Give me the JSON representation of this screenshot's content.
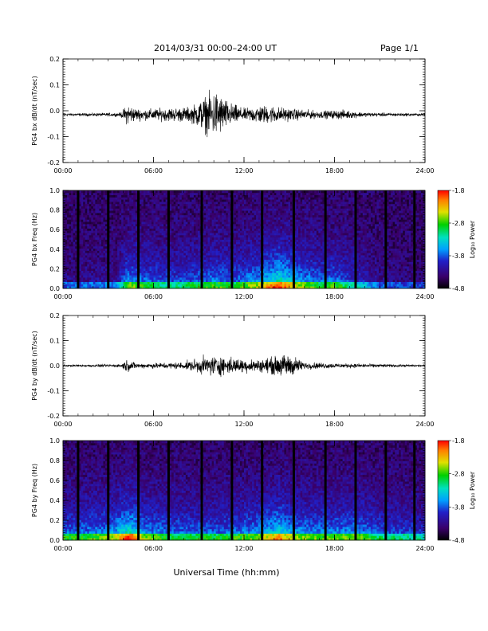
{
  "header": {
    "title": "2014/03/31  00:00–24:00 UT",
    "page": "Page 1/1"
  },
  "colorbar_label": "Log₁₀ Power",
  "chart_data": [
    {
      "type": "line",
      "ylabel": "PG4 bx dB/dt (nT/sec)",
      "ylim": [
        -0.2,
        0.2
      ],
      "y_ticks": [
        "0.2",
        "0.1",
        "0.0",
        "-0.1",
        "-0.2"
      ],
      "x_ticks": [
        "00:00",
        "06:00",
        "12:00",
        "18:00",
        "24:00"
      ],
      "xlim": [
        0,
        24
      ],
      "envelope": [
        {
          "x": 0,
          "amp": 0.004
        },
        {
          "x": 3.8,
          "amp": 0.006
        },
        {
          "x": 4.3,
          "amp": 0.035
        },
        {
          "x": 4.8,
          "amp": 0.02
        },
        {
          "x": 5.5,
          "amp": 0.018
        },
        {
          "x": 8.5,
          "amp": 0.025
        },
        {
          "x": 9.3,
          "amp": 0.055
        },
        {
          "x": 10.1,
          "amp": 0.08
        },
        {
          "x": 11,
          "amp": 0.04
        },
        {
          "x": 12,
          "amp": 0.02
        },
        {
          "x": 13,
          "amp": 0.03
        },
        {
          "x": 14,
          "amp": 0.028
        },
        {
          "x": 15,
          "amp": 0.02
        },
        {
          "x": 17,
          "amp": 0.012
        },
        {
          "x": 18.5,
          "amp": 0.015
        },
        {
          "x": 20,
          "amp": 0.007
        },
        {
          "x": 24,
          "amp": 0.004
        }
      ],
      "baseline": -0.015
    },
    {
      "type": "heatmap",
      "ylabel": "PG4 bx Freq (Hz)",
      "ylim": [
        0,
        1.0
      ],
      "y_ticks": [
        "1.0",
        "0.8",
        "0.6",
        "0.4",
        "0.2",
        "0.0"
      ],
      "x_ticks": [
        "00:00",
        "06:00",
        "12:00",
        "18:00",
        "24:00"
      ],
      "xlim": [
        0,
        24
      ],
      "colorbar": {
        "range": [
          -4.8,
          -1.8
        ],
        "ticks": [
          "-1.8",
          "-2.8",
          "-3.8",
          "-4.8"
        ]
      },
      "gaps": [
        1.0,
        3.0,
        5.0,
        7.0,
        9.2,
        11.2,
        13.2,
        15.3,
        17.4,
        19.4,
        21.4,
        23.3
      ],
      "activity": [
        {
          "x": 0,
          "a": 0.1
        },
        {
          "x": 3.5,
          "a": 0.15
        },
        {
          "x": 4.3,
          "a": 0.55
        },
        {
          "x": 5.5,
          "a": 0.45
        },
        {
          "x": 7,
          "a": 0.35
        },
        {
          "x": 9,
          "a": 0.45
        },
        {
          "x": 10,
          "a": 0.5
        },
        {
          "x": 11.5,
          "a": 0.45
        },
        {
          "x": 13,
          "a": 0.6
        },
        {
          "x": 14.3,
          "a": 0.85
        },
        {
          "x": 15.5,
          "a": 0.6
        },
        {
          "x": 17,
          "a": 0.45
        },
        {
          "x": 18,
          "a": 0.5
        },
        {
          "x": 19.5,
          "a": 0.3
        },
        {
          "x": 21,
          "a": 0.1
        },
        {
          "x": 24,
          "a": 0.05
        }
      ]
    },
    {
      "type": "line",
      "ylabel": "PG4 by dB/dt (nT/sec)",
      "ylim": [
        -0.2,
        0.2
      ],
      "y_ticks": [
        "0.2",
        "0.1",
        "0.0",
        "-0.1",
        "-0.2"
      ],
      "x_ticks": [
        "00:00",
        "06:00",
        "12:00",
        "18:00",
        "24:00"
      ],
      "xlim": [
        0,
        24
      ],
      "envelope": [
        {
          "x": 0,
          "amp": 0.003
        },
        {
          "x": 3.8,
          "amp": 0.005
        },
        {
          "x": 4.2,
          "amp": 0.02
        },
        {
          "x": 5,
          "amp": 0.008
        },
        {
          "x": 8,
          "amp": 0.012
        },
        {
          "x": 9,
          "amp": 0.025
        },
        {
          "x": 10,
          "amp": 0.035
        },
        {
          "x": 11.5,
          "amp": 0.025
        },
        {
          "x": 13,
          "amp": 0.02
        },
        {
          "x": 14,
          "amp": 0.03
        },
        {
          "x": 15,
          "amp": 0.04
        },
        {
          "x": 16,
          "amp": 0.012
        },
        {
          "x": 18,
          "amp": 0.008
        },
        {
          "x": 24,
          "amp": 0.003
        }
      ],
      "baseline": 0.0
    },
    {
      "type": "heatmap",
      "ylabel": "PG4 by Freq (Hz)",
      "ylim": [
        0,
        1.0
      ],
      "y_ticks": [
        "1.0",
        "0.8",
        "0.6",
        "0.4",
        "0.2",
        "0.0"
      ],
      "x_ticks": [
        "00:00",
        "06:00",
        "12:00",
        "18:00",
        "24:00"
      ],
      "xlim": [
        0,
        24
      ],
      "xlabel": "Universal Time (hh:mm)",
      "colorbar": {
        "range": [
          -4.8,
          -1.8
        ],
        "ticks": [
          "-1.8",
          "-2.8",
          "-3.8",
          "-4.8"
        ]
      },
      "gaps": [
        1.0,
        3.0,
        5.0,
        7.0,
        9.2,
        11.2,
        13.2,
        15.3,
        17.4,
        19.4,
        21.4,
        23.3
      ],
      "activity": [
        {
          "x": 0,
          "a": 0.45
        },
        {
          "x": 2,
          "a": 0.5
        },
        {
          "x": 3.5,
          "a": 0.6
        },
        {
          "x": 4.3,
          "a": 0.85
        },
        {
          "x": 5.5,
          "a": 0.55
        },
        {
          "x": 7,
          "a": 0.45
        },
        {
          "x": 9,
          "a": 0.45
        },
        {
          "x": 11,
          "a": 0.45
        },
        {
          "x": 13,
          "a": 0.55
        },
        {
          "x": 14.3,
          "a": 0.75
        },
        {
          "x": 15.5,
          "a": 0.55
        },
        {
          "x": 17.5,
          "a": 0.5
        },
        {
          "x": 19.5,
          "a": 0.55
        },
        {
          "x": 21,
          "a": 0.4
        },
        {
          "x": 23,
          "a": 0.35
        },
        {
          "x": 24,
          "a": 0.3
        }
      ]
    }
  ]
}
